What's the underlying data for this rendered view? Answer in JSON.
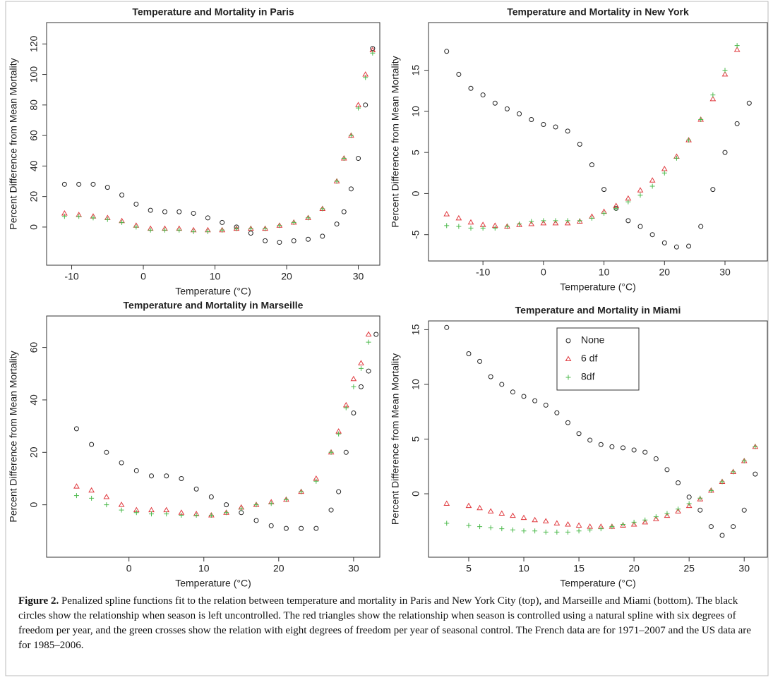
{
  "chart_data": [
    {
      "type": "scatter",
      "title": "Temperature and Mortality in Paris",
      "x_label": "Temperature (°C)",
      "y_label": "Percent Difference from Mean Mortality",
      "x": [
        -11,
        -9,
        -7,
        -5,
        -3,
        -1,
        1,
        3,
        5,
        7,
        9,
        11,
        13,
        15,
        17,
        19,
        21,
        23,
        25,
        27,
        28,
        29,
        30,
        31,
        32
      ],
      "series": [
        {
          "color": "#222222",
          "marker": "circle",
          "values": [
            28,
            28,
            28,
            26,
            21,
            15,
            11,
            10,
            10,
            9,
            6,
            3,
            0,
            -4,
            -9,
            -10,
            -9,
            -8,
            -6,
            2,
            10,
            25,
            45,
            80,
            117
          ]
        },
        {
          "color": "#e0393e",
          "marker": "triangle",
          "values": [
            9,
            8,
            7,
            6,
            4,
            1,
            -1,
            -1,
            -1,
            -2,
            -2,
            -2,
            -1,
            -1,
            -1,
            1,
            3,
            6,
            12,
            30,
            45,
            60,
            80,
            100,
            116
          ]
        },
        {
          "color": "#4cba4c",
          "marker": "cross",
          "values": [
            7,
            7,
            6,
            5,
            3,
            0,
            -2,
            -2,
            -2,
            -3,
            -3,
            -2,
            -1,
            -1,
            -1,
            1,
            3,
            6,
            12,
            30,
            45,
            60,
            78,
            98,
            114
          ]
        }
      ],
      "xlim": [
        -13.5,
        33
      ],
      "xticks": [
        -10,
        0,
        10,
        20,
        30
      ],
      "ylim": [
        -25,
        134
      ],
      "yticks": [
        0,
        20,
        40,
        60,
        80,
        100,
        120
      ]
    },
    {
      "type": "scatter",
      "title": "Temperature and Mortality in New York",
      "x_label": "Temperature (°C)",
      "y_label": "Percent Difference from Mean Mortality",
      "x": [
        -16,
        -14,
        -12,
        -10,
        -8,
        -6,
        -4,
        -2,
        0,
        2,
        4,
        6,
        8,
        10,
        12,
        14,
        16,
        18,
        20,
        22,
        24,
        26,
        28,
        30,
        32,
        34
      ],
      "series": [
        {
          "color": "#222222",
          "marker": "circle",
          "values": [
            17.3,
            14.5,
            12.8,
            12,
            11,
            10.3,
            9.7,
            9,
            8.4,
            8.1,
            7.6,
            6,
            3.5,
            0.5,
            -1.8,
            -3.3,
            -4,
            -5,
            -6,
            -6.5,
            -6.4,
            -4,
            0.5,
            5,
            8.5,
            11
          ]
        },
        {
          "color": "#e0393e",
          "marker": "triangle",
          "values": [
            -2.5,
            -3,
            -3.5,
            -3.8,
            -3.9,
            -4,
            -3.8,
            -3.7,
            -3.6,
            -3.6,
            -3.6,
            -3.4,
            -2.8,
            -2.2,
            -1.5,
            -0.6,
            0.4,
            1.6,
            3,
            4.5,
            6.5,
            9,
            11.5,
            14.5,
            17.5,
            null
          ]
        },
        {
          "color": "#4cba4c",
          "marker": "cross",
          "values": [
            -3.9,
            -4,
            -4.2,
            -4.2,
            -4.2,
            -4,
            -3.7,
            -3.4,
            -3.3,
            -3.3,
            -3.3,
            -3.3,
            -3,
            -2.4,
            -1.8,
            -1,
            -0.2,
            0.9,
            2.5,
            4.3,
            6.5,
            9,
            12,
            15,
            18,
            null
          ]
        }
      ],
      "xlim": [
        -19,
        37
      ],
      "xticks": [
        -10,
        0,
        10,
        20,
        30
      ],
      "ylim": [
        -8.2,
        20.8
      ],
      "yticks": [
        -5,
        0,
        5,
        10,
        15
      ]
    },
    {
      "type": "scatter",
      "title": "Temperature and Mortality in Marseille",
      "x_label": "Temperature (°C)",
      "y_label": "Percent Difference from Mean Mortality",
      "x": [
        -7,
        -5,
        -3,
        -1,
        1,
        3,
        5,
        7,
        9,
        11,
        13,
        15,
        17,
        19,
        21,
        23,
        25,
        27,
        28,
        29,
        30,
        31,
        32,
        33
      ],
      "series": [
        {
          "color": "#222222",
          "marker": "circle",
          "values": [
            29,
            23,
            20,
            16,
            13,
            11,
            11,
            10,
            6,
            3,
            0,
            -3,
            -6,
            -8,
            -9,
            -9,
            -9,
            -2,
            5,
            20,
            35,
            45,
            51,
            65
          ]
        },
        {
          "color": "#e0393e",
          "marker": "triangle",
          "values": [
            7,
            5.5,
            3,
            0,
            -2,
            -2,
            -2,
            -3,
            -3.5,
            -4,
            -3,
            -1,
            0,
            1,
            2,
            5,
            10,
            20,
            28,
            38,
            48,
            54,
            65,
            null
          ]
        },
        {
          "color": "#4cba4c",
          "marker": "cross",
          "values": [
            3.5,
            2.5,
            0,
            -2,
            -3,
            -3.5,
            -3.5,
            -4,
            -4,
            -4,
            -3,
            -1.5,
            0,
            0.5,
            2,
            5,
            9,
            20,
            27,
            37,
            45,
            52,
            62,
            null
          ]
        }
      ],
      "xlim": [
        -11,
        33.5
      ],
      "xticks": [
        0,
        10,
        20,
        30
      ],
      "ylim": [
        -20,
        72
      ],
      "yticks": [
        0,
        20,
        40,
        60
      ]
    },
    {
      "type": "scatter",
      "title": "Temperature and Mortality in Miami",
      "x_label": "Temperature (°C)",
      "y_label": "Percent Difference from Mean Mortality",
      "x": [
        3,
        5,
        6,
        7,
        8,
        9,
        10,
        11,
        12,
        13,
        14,
        15,
        16,
        17,
        18,
        19,
        20,
        21,
        22,
        23,
        24,
        25,
        26,
        27,
        28,
        29,
        30,
        31
      ],
      "series": [
        {
          "name": "None",
          "color": "#222222",
          "marker": "circle",
          "values": [
            15.2,
            12.8,
            12.1,
            10.7,
            10,
            9.3,
            8.9,
            8.5,
            8.1,
            7.4,
            6.5,
            5.5,
            4.9,
            4.5,
            4.3,
            4.2,
            4,
            3.8,
            3.2,
            2.2,
            1,
            -0.3,
            -1.5,
            -3,
            -3.8,
            -3,
            -1.5,
            1.8
          ]
        },
        {
          "name": "6 df",
          "color": "#e0393e",
          "marker": "triangle",
          "values": [
            -0.9,
            -1.1,
            -1.3,
            -1.6,
            -1.8,
            -2,
            -2.2,
            -2.4,
            -2.5,
            -2.7,
            -2.8,
            -2.9,
            -3,
            -3,
            -3,
            -2.9,
            -2.8,
            -2.6,
            -2.3,
            -2,
            -1.6,
            -1.1,
            -0.5,
            0.3,
            1.1,
            2,
            3,
            4.3
          ]
        },
        {
          "name": "8df",
          "color": "#4cba4c",
          "marker": "cross",
          "values": [
            -2.7,
            -2.9,
            -3,
            -3.1,
            -3.2,
            -3.3,
            -3.4,
            -3.4,
            -3.5,
            -3.5,
            -3.5,
            -3.4,
            -3.3,
            -3.2,
            -3,
            -2.8,
            -2.6,
            -2.4,
            -2.1,
            -1.8,
            -1.4,
            -0.9,
            -0.4,
            0.3,
            1.1,
            2,
            3,
            4.3
          ]
        }
      ],
      "xlim": [
        1.35,
        32.1
      ],
      "xticks": [
        5,
        10,
        15,
        20,
        25,
        30
      ],
      "ylim": [
        -5.8,
        15.8
      ],
      "yticks": [
        0,
        5,
        10,
        15
      ],
      "legend": "top"
    }
  ],
  "caption": {
    "label": "Figure 2.",
    "text": " Penalized spline functions fit to the relation between temperature and mortality in Paris and New York City (top), and Marseille and Miami (bottom). The black circles show the relationship when season is left uncontrolled. The red triangles show the relationship when season is controlled using a natural spline with six degrees of freedom per year, and the green crosses show the relation with eight degrees of freedom per year of seasonal control. The French data are for 1971–2007 and the US data are for 1985–2006."
  }
}
